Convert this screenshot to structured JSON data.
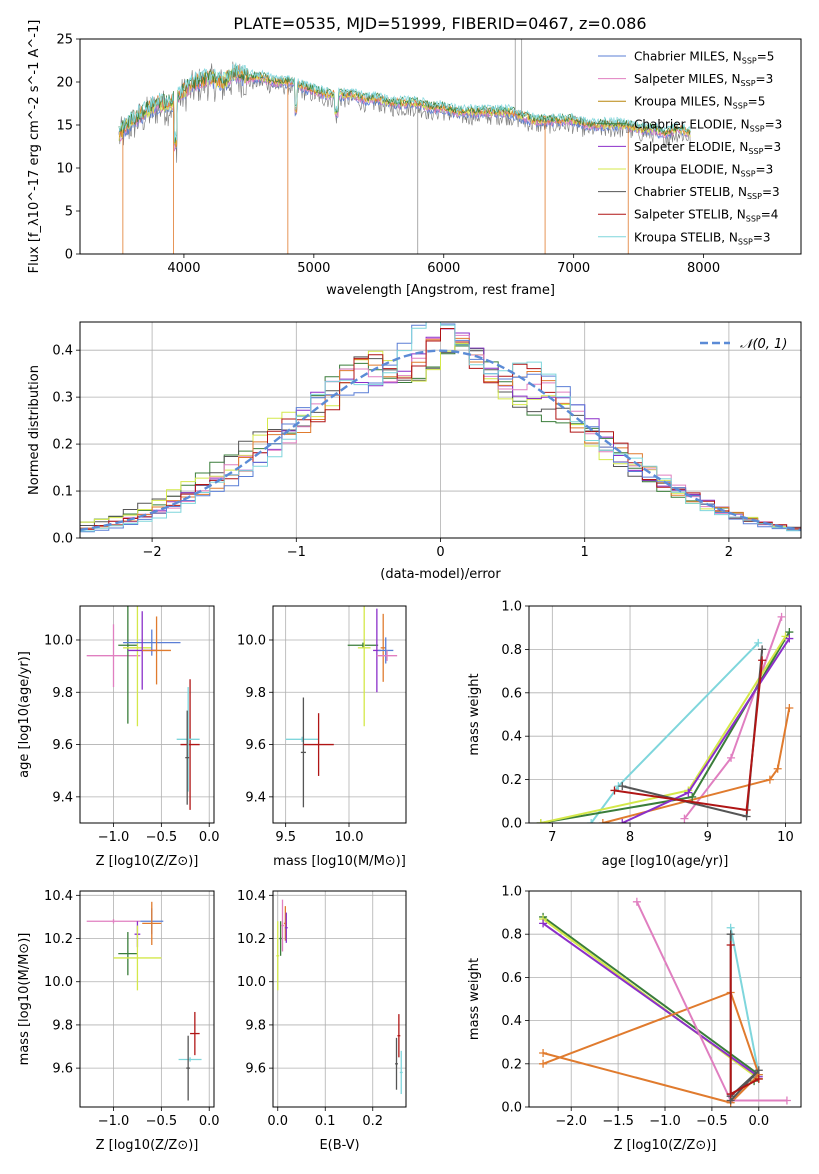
{
  "figure_title": "PLATE=0535, MJD=51999, FIBERID=0467, z=0.086",
  "series_colors": {
    "Chabrier MILES": "#5b7fd6",
    "Salpeter MILES": "#e07fc0",
    "Kroupa MILES": "#b8860b",
    "Chabrier ELODIE": "#3a7d3a",
    "Salpeter ELODIE": "#8b2fc9",
    "Kroupa ELODIE": "#d4e84a",
    "Chabrier STELIB": "#555555",
    "Salpeter STELIB": "#b01515",
    "Kroupa STELIB": "#7fd6dc",
    "Kroupa MILES (markers)": "#e07b2e"
  },
  "chart_data": [
    {
      "id": "spectrum",
      "type": "line",
      "title": "PLATE=0535, MJD=51999, FIBERID=0467, z=0.086",
      "xlabel": "wavelength [Angstrom, rest frame]",
      "ylabel": "Flux [f_λ10^-17 erg cm^-2 s^-1 A^-1]",
      "xlim": [
        3200,
        8750
      ],
      "ylim": [
        0,
        25
      ],
      "xticks": [
        4000,
        5000,
        6000,
        7000,
        8000
      ],
      "yticks": [
        0,
        5,
        10,
        15,
        20,
        25
      ],
      "grid": false,
      "legend_position": "top-right",
      "legend": [
        {
          "name": "Chabrier MILES",
          "sub": "5"
        },
        {
          "name": "Salpeter MILES",
          "sub": "3"
        },
        {
          "name": "Kroupa MILES",
          "sub": "5"
        },
        {
          "name": "Chabrier ELODIE",
          "sub": "3"
        },
        {
          "name": "Salpeter ELODIE",
          "sub": "3"
        },
        {
          "name": "Kroupa ELODIE",
          "sub": "3"
        },
        {
          "name": "Chabrier STELIB",
          "sub": "3"
        },
        {
          "name": "Salpeter STELIB",
          "sub": "4"
        },
        {
          "name": "Kroupa STELIB",
          "sub": "3"
        }
      ],
      "continuum": [
        [
          3500,
          14
        ],
        [
          3600,
          15.5
        ],
        [
          3700,
          16.5
        ],
        [
          3800,
          17.5
        ],
        [
          3900,
          17.5
        ],
        [
          4000,
          19
        ],
        [
          4100,
          20
        ],
        [
          4200,
          20.5
        ],
        [
          4300,
          20
        ],
        [
          4400,
          21
        ],
        [
          4500,
          20.5
        ],
        [
          4600,
          20.5
        ],
        [
          4700,
          20
        ],
        [
          4800,
          20
        ],
        [
          4900,
          19.5
        ],
        [
          5000,
          19
        ],
        [
          5100,
          18.5
        ],
        [
          5200,
          18.5
        ],
        [
          5300,
          18.5
        ],
        [
          5400,
          18
        ],
        [
          5500,
          18
        ],
        [
          5600,
          17.5
        ],
        [
          5700,
          17.5
        ],
        [
          5800,
          17.5
        ],
        [
          5900,
          17
        ],
        [
          6000,
          17
        ],
        [
          6100,
          16.5
        ],
        [
          6200,
          16.5
        ],
        [
          6300,
          16.5
        ],
        [
          6400,
          16.5
        ],
        [
          6500,
          16.5
        ],
        [
          6600,
          16
        ],
        [
          6700,
          15.5
        ],
        [
          6800,
          15.5
        ],
        [
          6900,
          15.5
        ],
        [
          7000,
          15.5
        ],
        [
          7100,
          15
        ],
        [
          7200,
          15
        ],
        [
          7300,
          15
        ],
        [
          7400,
          15
        ],
        [
          7500,
          14.5
        ],
        [
          7600,
          14.5
        ],
        [
          7700,
          14
        ],
        [
          7800,
          14.5
        ],
        [
          7900,
          14
        ]
      ],
      "edge_drops": [
        [
          3530,
          0
        ],
        [
          3920,
          0
        ],
        [
          4800,
          0
        ],
        [
          6780,
          0
        ],
        [
          7420,
          0
        ]
      ]
    },
    {
      "id": "residuals",
      "type": "line",
      "xlabel": "(data-model)/error",
      "ylabel": "Normed distribution",
      "xlim": [
        -2.5,
        2.5
      ],
      "ylim": [
        0,
        0.46
      ],
      "xticks": [
        -2,
        -1,
        0,
        1,
        2
      ],
      "xtick_labels": [
        "−2",
        "−1",
        "0",
        "1",
        "2"
      ],
      "yticks": [
        0.0,
        0.1,
        0.2,
        0.3,
        0.4
      ],
      "ytick_labels": [
        "0.0",
        "0.1",
        "0.2",
        "0.3",
        "0.4"
      ],
      "grid": true,
      "legend_position": "top-right",
      "legend": [
        {
          "name": "𝒩(0, 1)"
        }
      ],
      "gaussian": {
        "mean": 0,
        "sigma": 1,
        "color": "#5b8bd6"
      },
      "hist_groups": [
        {
          "shift": -0.35,
          "width": 1.05,
          "colors": [
            "#3a7d3a",
            "#555555",
            "#d4e84a"
          ]
        },
        {
          "shift": 0.0,
          "width": 1.0,
          "colors": [
            "#8b2fc9",
            "#e07fc0",
            "#e07b2e",
            "#b01515"
          ]
        },
        {
          "shift": 0.1,
          "width": 0.95,
          "colors": [
            "#5b7fd6",
            "#7fd6dc"
          ]
        }
      ]
    },
    {
      "id": "age_vs_Z",
      "type": "scatter",
      "xlabel": "Z [log10(Z/Z⊙)]",
      "ylabel": "age [log10(age/yr)]",
      "xlim": [
        -1.35,
        0.05
      ],
      "ylim": [
        9.3,
        10.13
      ],
      "xticks": [
        -1.0,
        -0.5,
        0.0
      ],
      "xtick_labels": [
        "−1.0",
        "−0.5",
        "0.0"
      ],
      "yticks": [
        9.4,
        9.6,
        9.8,
        10.0
      ],
      "ytick_labels": [
        "9.4",
        "9.6",
        "9.8",
        "10.0"
      ],
      "grid": true,
      "points": [
        {
          "x": -1.0,
          "y": 9.94,
          "xerr": 0.28,
          "yerr": 0.12,
          "color": "#e07fc0"
        },
        {
          "x": -0.85,
          "y": 9.98,
          "xerr": 0.1,
          "yerr": 0.3,
          "color": "#3a7d3a"
        },
        {
          "x": -0.75,
          "y": 9.97,
          "xerr": 0.15,
          "yerr": 0.3,
          "color": "#d4e84a"
        },
        {
          "x": -0.6,
          "y": 9.99,
          "xerr": 0.3,
          "yerr": 0.05,
          "color": "#5b7fd6"
        },
        {
          "x": -0.7,
          "y": 9.96,
          "xerr": 0.15,
          "yerr": 0.15,
          "color": "#8b2fc9"
        },
        {
          "x": -0.55,
          "y": 9.96,
          "xerr": 0.15,
          "yerr": 0.13,
          "color": "#e07b2e"
        },
        {
          "x": -0.2,
          "y": 9.6,
          "xerr": 0.1,
          "yerr": 0.25,
          "color": "#b01515"
        },
        {
          "x": -0.22,
          "y": 9.62,
          "xerr": 0.12,
          "yerr": 0.2,
          "color": "#7fd6dc"
        },
        {
          "x": -0.23,
          "y": 9.55,
          "xerr": 0.02,
          "yerr": 0.18,
          "color": "#555555"
        }
      ]
    },
    {
      "id": "age_vs_mass",
      "type": "scatter",
      "xlabel": "mass [log10(M/M⊙)]",
      "xlim": [
        9.4,
        10.45
      ],
      "ylim": [
        9.3,
        10.13
      ],
      "xticks": [
        9.5,
        10.0
      ],
      "xtick_labels": [
        "9.5",
        "10.0"
      ],
      "yticks": [
        9.4,
        9.6,
        9.8,
        10.0
      ],
      "ytick_labels": [
        "9.4",
        "9.6",
        "9.8",
        "10.0"
      ],
      "grid": true,
      "points": [
        {
          "x": 9.63,
          "y": 9.62,
          "xerr": 0.13,
          "yerr": 0.01,
          "color": "#7fd6dc"
        },
        {
          "x": 9.64,
          "y": 9.57,
          "xerr": 0.02,
          "yerr": 0.21,
          "color": "#555555"
        },
        {
          "x": 9.76,
          "y": 9.6,
          "xerr": 0.12,
          "yerr": 0.12,
          "color": "#b01515"
        },
        {
          "x": 10.11,
          "y": 9.98,
          "xerr": 0.12,
          "yerr": 0.01,
          "color": "#3a7d3a"
        },
        {
          "x": 10.12,
          "y": 9.97,
          "xerr": 0.05,
          "yerr": 0.3,
          "color": "#d4e84a"
        },
        {
          "x": 10.22,
          "y": 9.96,
          "xerr": 0.03,
          "yerr": 0.16,
          "color": "#8b2fc9"
        },
        {
          "x": 10.27,
          "y": 9.97,
          "xerr": 0.02,
          "yerr": 0.13,
          "color": "#e07b2e"
        },
        {
          "x": 10.29,
          "y": 9.96,
          "xerr": 0.06,
          "yerr": 0.05,
          "color": "#5b7fd6"
        },
        {
          "x": 10.3,
          "y": 9.94,
          "xerr": 0.08,
          "yerr": 0.02,
          "color": "#e07fc0"
        }
      ]
    },
    {
      "id": "mass_weight_vs_age",
      "type": "line",
      "xlabel": "age [log10(age/yr)]",
      "ylabel": "mass weight",
      "xlim": [
        6.7,
        10.2
      ],
      "ylim": [
        0,
        1.0
      ],
      "xticks": [
        7,
        8,
        9,
        10
      ],
      "yticks": [
        0.0,
        0.2,
        0.4,
        0.6,
        0.8,
        1.0
      ],
      "ytick_labels": [
        "0.0",
        "0.2",
        "0.4",
        "0.6",
        "0.8",
        "1.0"
      ],
      "grid": true,
      "series": [
        {
          "color": "#7fd6dc",
          "points": [
            [
              7.5,
              0.0
            ],
            [
              7.85,
              0.17
            ],
            [
              9.65,
              0.83
            ]
          ]
        },
        {
          "color": "#e07fc0",
          "points": [
            [
              8.7,
              0.02
            ],
            [
              9.3,
              0.3
            ],
            [
              9.95,
              0.95
            ]
          ]
        },
        {
          "color": "#e07b2e",
          "points": [
            [
              7.65,
              0.0
            ],
            [
              9.8,
              0.2
            ],
            [
              9.9,
              0.25
            ],
            [
              10.05,
              0.53
            ]
          ]
        },
        {
          "color": "#3a7d3a",
          "points": [
            [
              6.85,
              0.0
            ],
            [
              8.8,
              0.12
            ],
            [
              10.05,
              0.88
            ]
          ]
        },
        {
          "color": "#d4e84a",
          "points": [
            [
              6.85,
              0.0
            ],
            [
              8.75,
              0.15
            ],
            [
              10.0,
              0.86
            ]
          ]
        },
        {
          "color": "#8b2fc9",
          "points": [
            [
              7.9,
              0.0
            ],
            [
              8.75,
              0.14
            ],
            [
              10.05,
              0.85
            ]
          ]
        },
        {
          "color": "#555555",
          "points": [
            [
              7.9,
              0.17
            ],
            [
              9.5,
              0.03
            ],
            [
              9.7,
              0.8
            ]
          ]
        },
        {
          "color": "#b01515",
          "points": [
            [
              7.8,
              0.15
            ],
            [
              9.5,
              0.06
            ],
            [
              9.7,
              0.75
            ]
          ]
        }
      ]
    },
    {
      "id": "mass_vs_Z",
      "type": "scatter",
      "xlabel": "Z [log10(Z/Z⊙)]",
      "ylabel": "mass [log10(M/M⊙)]",
      "xlim": [
        -1.35,
        0.05
      ],
      "ylim": [
        9.42,
        10.42
      ],
      "xticks": [
        -1.0,
        -0.5,
        0.0
      ],
      "xtick_labels": [
        "−1.0",
        "−0.5",
        "0.0"
      ],
      "yticks": [
        9.6,
        9.8,
        10.0,
        10.2,
        10.4
      ],
      "ytick_labels": [
        "9.6",
        "9.8",
        "10.0",
        "10.2",
        "10.4"
      ],
      "grid": true,
      "points": [
        {
          "x": -1.0,
          "y": 10.28,
          "xerr": 0.28,
          "yerr": 0.01,
          "color": "#e07fc0"
        },
        {
          "x": -0.6,
          "y": 10.28,
          "xerr": 0.12,
          "yerr": 0.06,
          "color": "#5b7fd6"
        },
        {
          "x": -0.6,
          "y": 10.27,
          "xerr": 0.1,
          "yerr": 0.1,
          "color": "#e07b2e"
        },
        {
          "x": -0.75,
          "y": 10.22,
          "xerr": 0.03,
          "yerr": 0.06,
          "color": "#8b2fc9"
        },
        {
          "x": -0.85,
          "y": 10.13,
          "xerr": 0.1,
          "yerr": 0.1,
          "color": "#3a7d3a"
        },
        {
          "x": -0.75,
          "y": 10.11,
          "xerr": 0.25,
          "yerr": 0.15,
          "color": "#d4e84a"
        },
        {
          "x": -0.15,
          "y": 9.76,
          "xerr": 0.05,
          "yerr": 0.1,
          "color": "#b01515"
        },
        {
          "x": -0.2,
          "y": 9.64,
          "xerr": 0.12,
          "yerr": 0.01,
          "color": "#7fd6dc"
        },
        {
          "x": -0.22,
          "y": 9.6,
          "xerr": 0.02,
          "yerr": 0.15,
          "color": "#555555"
        }
      ]
    },
    {
      "id": "mass_vs_ebv",
      "type": "scatter",
      "xlabel": "E(B-V)",
      "xlim": [
        -0.01,
        0.27
      ],
      "ylim": [
        9.42,
        10.42
      ],
      "xticks": [
        0.0,
        0.1,
        0.2
      ],
      "xtick_labels": [
        "0.0",
        "0.1",
        "0.2"
      ],
      "yticks": [
        9.6,
        9.8,
        10.0,
        10.2,
        10.4
      ],
      "ytick_labels": [
        "9.6",
        "9.8",
        "10.0",
        "10.2",
        "10.4"
      ],
      "grid": true,
      "points": [
        {
          "x": 0.0,
          "y": 10.12,
          "xerr": 0.003,
          "yerr": 0.16,
          "color": "#d4e84a"
        },
        {
          "x": 0.006,
          "y": 10.2,
          "xerr": 0.003,
          "yerr": 0.08,
          "color": "#3a7d3a"
        },
        {
          "x": 0.01,
          "y": 10.26,
          "xerr": 0.003,
          "yerr": 0.12,
          "color": "#e07fc0"
        },
        {
          "x": 0.016,
          "y": 10.27,
          "xerr": 0.003,
          "yerr": 0.08,
          "color": "#e07b2e"
        },
        {
          "x": 0.018,
          "y": 10.25,
          "xerr": 0.003,
          "yerr": 0.07,
          "color": "#8b2fc9"
        },
        {
          "x": 0.25,
          "y": 9.62,
          "xerr": 0.003,
          "yerr": 0.12,
          "color": "#555555"
        },
        {
          "x": 0.255,
          "y": 9.75,
          "xerr": 0.003,
          "yerr": 0.1,
          "color": "#b01515"
        },
        {
          "x": 0.26,
          "y": 9.58,
          "xerr": 0.003,
          "yerr": 0.1,
          "color": "#7fd6dc"
        }
      ]
    },
    {
      "id": "mass_weight_vs_Z",
      "type": "line",
      "xlabel": "Z [log10(Z/Z⊙)]",
      "ylabel": "mass weight",
      "xlim": [
        -2.45,
        0.45
      ],
      "ylim": [
        0,
        1.0
      ],
      "xticks": [
        -2.0,
        -1.5,
        -1.0,
        -0.5,
        0.0
      ],
      "xtick_labels": [
        "−2.0",
        "−1.5",
        "−1.0",
        "−0.5",
        "0.0"
      ],
      "yticks": [
        0.0,
        0.2,
        0.4,
        0.6,
        0.8,
        1.0
      ],
      "ytick_labels": [
        "0.0",
        "0.2",
        "0.4",
        "0.6",
        "0.8",
        "1.0"
      ],
      "grid": true,
      "series": [
        {
          "color": "#3a7d3a",
          "points": [
            [
              -2.3,
              0.88
            ],
            [
              0.0,
              0.15
            ],
            [
              -0.05,
              0.12
            ]
          ]
        },
        {
          "color": "#d4e84a",
          "points": [
            [
              -2.3,
              0.87
            ],
            [
              0.0,
              0.13
            ]
          ]
        },
        {
          "color": "#8b2fc9",
          "points": [
            [
              -2.3,
              0.85
            ],
            [
              0.0,
              0.14
            ]
          ]
        },
        {
          "color": "#7fd6dc",
          "points": [
            [
              -0.3,
              0.83
            ],
            [
              0.0,
              0.15
            ]
          ]
        },
        {
          "color": "#e07b2e",
          "points": [
            [
              -2.3,
              0.25
            ],
            [
              -0.3,
              0.02
            ],
            [
              0.0,
              0.15
            ],
            [
              -0.3,
              0.53
            ],
            [
              -2.3,
              0.2
            ]
          ]
        },
        {
          "color": "#e07fc0",
          "points": [
            [
              -1.3,
              0.95
            ],
            [
              -0.3,
              0.03
            ],
            [
              0.3,
              0.03
            ]
          ]
        },
        {
          "color": "#555555",
          "points": [
            [
              -0.3,
              0.8
            ],
            [
              -0.3,
              0.03
            ],
            [
              0.0,
              0.17
            ],
            [
              -0.3,
              0.05
            ]
          ]
        },
        {
          "color": "#b01515",
          "points": [
            [
              -0.3,
              0.75
            ],
            [
              -0.3,
              0.06
            ],
            [
              0.0,
              0.13
            ]
          ]
        }
      ]
    }
  ]
}
